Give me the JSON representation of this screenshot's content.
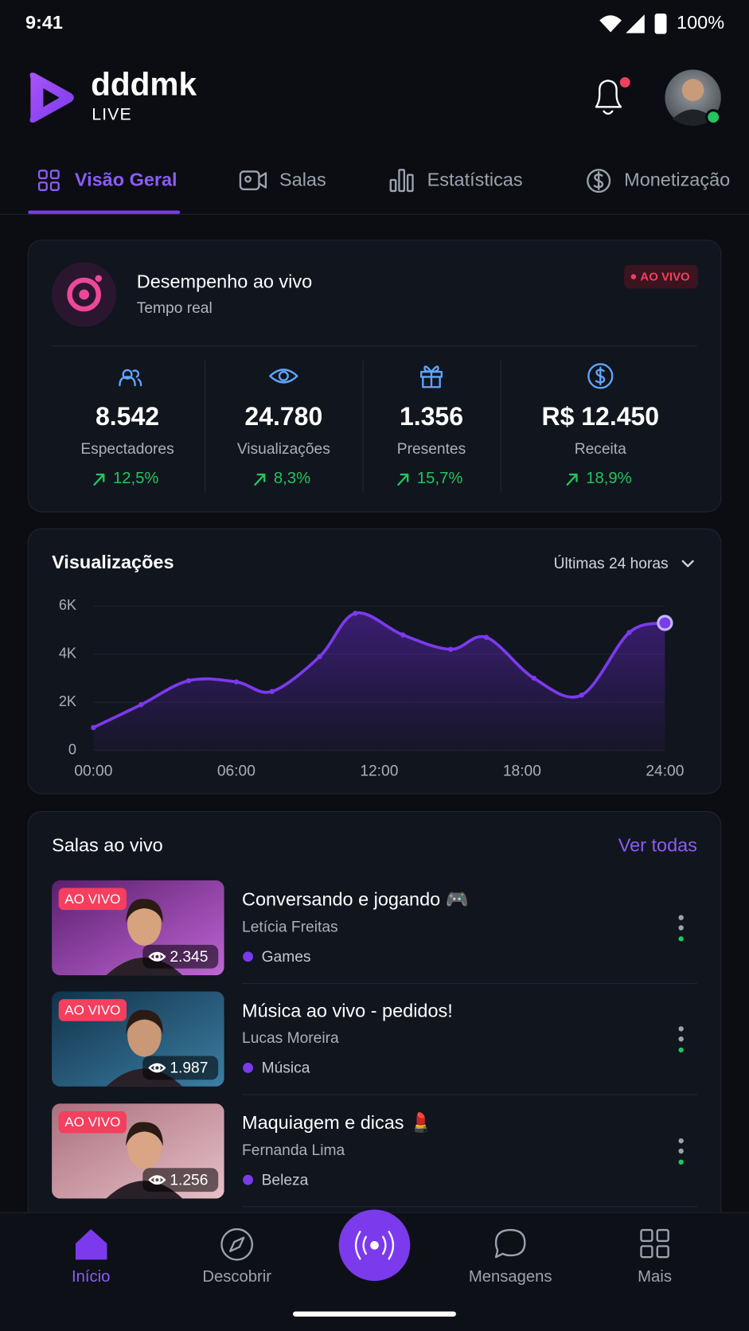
{
  "status_bar": {
    "time": "9:41",
    "battery": "100%"
  },
  "header": {
    "brand": "dddmk",
    "sub": "LIVE"
  },
  "tabs": [
    "Visão Geral",
    "Salas",
    "Estatísticas",
    "Monetização"
  ],
  "live_performance": {
    "title": "Desempenho ao vivo",
    "subtitle": "Tempo real",
    "badge": "AO VIVO",
    "stats": [
      {
        "value": "8.542",
        "label": "Espectadores",
        "change": "12,5%"
      },
      {
        "value": "24.780",
        "label": "Visualizações",
        "change": "8,3%"
      },
      {
        "value": "1.356",
        "label": "Presentes",
        "change": "15,7%"
      },
      {
        "value": "R$ 12.450",
        "label": "Receita",
        "change": "18,9%"
      }
    ]
  },
  "chart_data": {
    "type": "line",
    "title": "Visualizações",
    "period": "Últimas 24 horas",
    "x": [
      0,
      2,
      4,
      6,
      7.5,
      9.5,
      11,
      13,
      15,
      16.5,
      18.5,
      20.5,
      22.5,
      24
    ],
    "series": [
      {
        "name": "Visualizações",
        "color": "#7c3aed",
        "values": [
          950,
          1900,
          2900,
          2850,
          2450,
          3900,
          5700,
          4800,
          4200,
          4700,
          3000,
          2300,
          4900,
          5300
        ]
      }
    ],
    "xlim": [
      0,
      24
    ],
    "xticks": [
      {
        "value": 0,
        "label": "00:00"
      },
      {
        "value": 6,
        "label": "06:00"
      },
      {
        "value": 12,
        "label": "12:00"
      },
      {
        "value": 18,
        "label": "18:00"
      },
      {
        "value": 24,
        "label": "24:00"
      }
    ],
    "ylim": [
      0,
      6000
    ],
    "yticks": [
      0,
      {
        "value": 2000,
        "label": "2K"
      },
      {
        "value": 4000,
        "label": "4K"
      },
      {
        "value": 6000,
        "label": "6K"
      }
    ],
    "grid": true
  },
  "live_rooms": {
    "title": "Salas ao vivo",
    "link": "Ver todas",
    "rooms": [
      {
        "badge": "AO VIVO",
        "viewers": "2.345",
        "title": "Conversando e jogando 🎮",
        "host": "Letícia Freitas",
        "category": "Games"
      },
      {
        "badge": "AO VIVO",
        "viewers": "1.987",
        "title": "Música ao vivo - pedidos!",
        "host": "Lucas Moreira",
        "category": "Música"
      },
      {
        "badge": "AO VIVO",
        "viewers": "1.256",
        "title": "Maquiagem e dicas 💄",
        "host": "Fernanda Lima",
        "category": "Beleza"
      }
    ]
  },
  "bottom_nav": [
    "Início",
    "Descobrir",
    "Mensagens",
    "Mais"
  ]
}
